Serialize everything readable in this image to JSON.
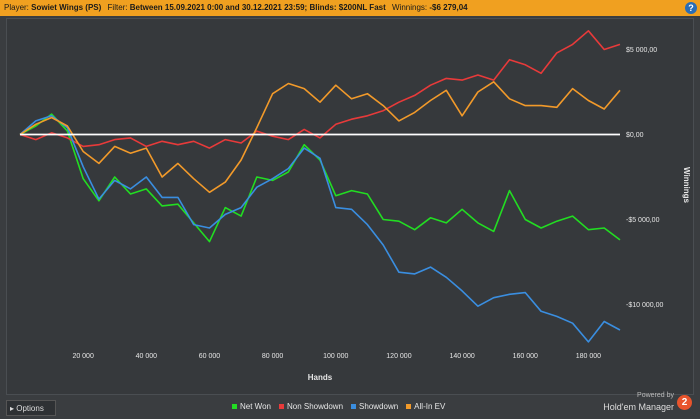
{
  "header": {
    "player_label": "Player:",
    "player_value": "Sowiet Wings (PS)",
    "filter_label": "Filter:",
    "filter_value": "Between 15.09.2021 0:00 and 30.12.2021 23:59; Blinds: $200NL Fast",
    "winnings_label": "Winnings:",
    "winnings_value": "-$6 279,04",
    "help_glyph": "?"
  },
  "footer": {
    "options_label": "Options",
    "powered_by": "Powered by",
    "brand": "Hold'em Manager",
    "logo_glyph": "2"
  },
  "colors": {
    "net_won": "#22dd22",
    "non_showdown": "#e83a3a",
    "showdown": "#3a8ee0",
    "all_in_ev": "#f29a2a",
    "zero_line": "#ffffff"
  },
  "chart_data": {
    "type": "line",
    "xlabel": "Hands",
    "ylabel": "Winnings",
    "xlim": [
      0,
      190000
    ],
    "ylim": [
      -12500,
      6500
    ],
    "xticks": [
      20000,
      40000,
      60000,
      80000,
      100000,
      120000,
      140000,
      160000,
      180000
    ],
    "xtick_labels": [
      "20 000",
      "40 000",
      "60 000",
      "80 000",
      "100 000",
      "120 000",
      "140 000",
      "160 000",
      "180 000"
    ],
    "yticks": [
      5000,
      0,
      -5000,
      -10000
    ],
    "ytick_labels": [
      "$5 000,00",
      "$0,00",
      "-$5 000,00",
      "-$10 000,00"
    ],
    "grid": false,
    "legend_position": "bottom",
    "x": [
      0,
      5000,
      10000,
      15000,
      20000,
      25000,
      30000,
      35000,
      40000,
      45000,
      50000,
      55000,
      60000,
      65000,
      70000,
      75000,
      80000,
      85000,
      90000,
      95000,
      100000,
      105000,
      110000,
      115000,
      120000,
      125000,
      130000,
      135000,
      140000,
      145000,
      150000,
      155000,
      160000,
      165000,
      170000,
      175000,
      180000,
      185000,
      190000
    ],
    "series": [
      {
        "name": "Net Won",
        "color_key": "net_won",
        "values": [
          0,
          500,
          1200,
          200,
          -2600,
          -3900,
          -2500,
          -3500,
          -3200,
          -4200,
          -4100,
          -5200,
          -6300,
          -4300,
          -4800,
          -2500,
          -2700,
          -2200,
          -600,
          -1500,
          -3600,
          -3300,
          -3500,
          -5000,
          -5100,
          -5600,
          -4900,
          -5200,
          -4400,
          -5200,
          -5700,
          -3300,
          -5000,
          -5500,
          -5100,
          -4800,
          -5600,
          -5500,
          -6200
        ]
      },
      {
        "name": "Non Showdown",
        "color_key": "non_showdown",
        "values": [
          0,
          -300,
          100,
          -200,
          -700,
          -600,
          -300,
          -200,
          -700,
          -400,
          -600,
          -400,
          -800,
          -300,
          -500,
          200,
          -100,
          -300,
          300,
          -200,
          600,
          900,
          1100,
          1400,
          1900,
          2300,
          2900,
          3300,
          3200,
          3500,
          3200,
          4400,
          4100,
          3600,
          4800,
          5300,
          6100,
          5000,
          5300
        ]
      },
      {
        "name": "Showdown",
        "color_key": "showdown",
        "values": [
          0,
          800,
          1100,
          400,
          -1900,
          -3800,
          -2700,
          -3200,
          -2500,
          -3700,
          -3700,
          -5300,
          -5500,
          -4700,
          -4300,
          -3100,
          -2600,
          -2000,
          -800,
          -1400,
          -4300,
          -4400,
          -5300,
          -6500,
          -8100,
          -8200,
          -7800,
          -8400,
          -9200,
          -10100,
          -9600,
          -9400,
          -9300,
          -10400,
          -10700,
          -11100,
          -12200,
          -11000,
          -11500
        ]
      },
      {
        "name": "All-In EV",
        "color_key": "all_in_ev",
        "values": [
          0,
          600,
          1000,
          500,
          -1000,
          -1700,
          -700,
          -1100,
          -800,
          -2500,
          -1700,
          -2600,
          -3400,
          -2800,
          -1500,
          400,
          2400,
          3000,
          2700,
          1900,
          2900,
          2100,
          2400,
          1700,
          800,
          1300,
          2000,
          2600,
          1100,
          2500,
          3100,
          2100,
          1700,
          1700,
          1600,
          2700,
          2000,
          1500,
          2600
        ]
      }
    ]
  }
}
